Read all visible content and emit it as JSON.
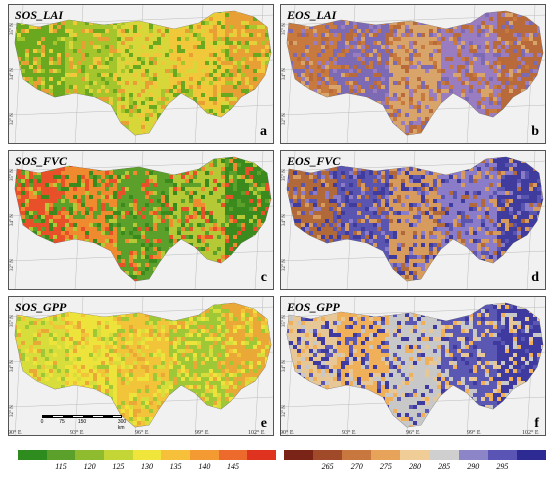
{
  "panels": [
    {
      "title": "SOS_LAI",
      "letter": "a",
      "palette": [
        "#6aa820",
        "#a4c62c",
        "#d8d73a",
        "#f0c83a",
        "#e8a035"
      ]
    },
    {
      "title": "EOS_LAI",
      "letter": "b",
      "palette": [
        "#c87a3e",
        "#7d6ab5",
        "#d9a46a",
        "#9a7cc0",
        "#b86a3a"
      ]
    },
    {
      "title": "SOS_FVC",
      "letter": "c",
      "palette": [
        "#e8502a",
        "#f08a2e",
        "#5aa02a",
        "#b5c835",
        "#3a8a1e"
      ]
    },
    {
      "title": "EOS_FVC",
      "letter": "d",
      "palette": [
        "#b2693a",
        "#5a55b0",
        "#d89b5e",
        "#8a7cc8",
        "#3f3c9e"
      ]
    },
    {
      "title": "SOS_GPP",
      "letter": "e",
      "palette": [
        "#d7de3c",
        "#ede33a",
        "#f1c43a",
        "#9fc836",
        "#eaa836"
      ]
    },
    {
      "title": "EOS_GPP",
      "letter": "f",
      "palette": [
        "#e8c796",
        "#f0b05a",
        "#c8c8c8",
        "#5a58b2",
        "#3e3aa0"
      ]
    }
  ],
  "lat_labels": [
    "35° N",
    "34° N",
    "32° N"
  ],
  "lon_labels": [
    "90° E",
    "93° E",
    "96° E",
    "99° E",
    "102° E"
  ],
  "scale_bar": {
    "ticks": [
      "0",
      "75",
      "150",
      "300 km"
    ]
  },
  "legend_sos": {
    "colors": [
      "#2e8b1e",
      "#5aa02a",
      "#8fbc2e",
      "#c4d636",
      "#f0e53a",
      "#f6c03a",
      "#f39a33",
      "#ec6a2c",
      "#e0331f"
    ],
    "ticks": [
      "115",
      "120",
      "125",
      "130",
      "135",
      "140",
      "145"
    ]
  },
  "legend_eos": {
    "colors": [
      "#7a2418",
      "#a04a2a",
      "#c8783e",
      "#e8a35a",
      "#f0cc96",
      "#cfcfcf",
      "#8c86c8",
      "#5a54b4",
      "#2e2a94"
    ],
    "ticks": [
      "265",
      "270",
      "275",
      "280",
      "285",
      "290",
      "295"
    ]
  }
}
